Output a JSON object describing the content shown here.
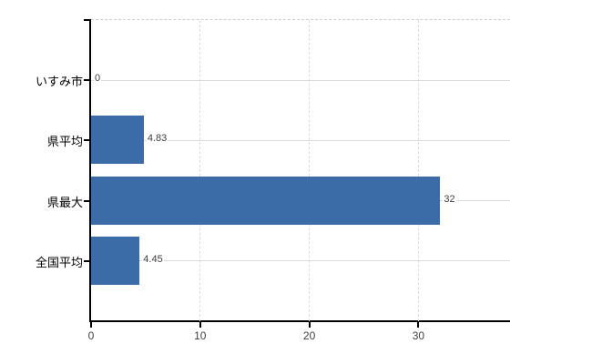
{
  "chart_data": {
    "type": "bar",
    "orientation": "horizontal",
    "categories": [
      "いすみ市",
      "県平均",
      "県最大",
      "全国平均"
    ],
    "values": [
      0,
      4.83,
      32,
      4.45
    ],
    "value_labels": [
      "0",
      "4.83",
      "32",
      "4.45"
    ],
    "x_ticks": [
      0,
      10,
      20,
      30
    ],
    "xlim": [
      0,
      38.4
    ],
    "grid": true,
    "legend": false,
    "bar_color": "#3c6ca8",
    "grid_color": "#d7ddd7",
    "top_border_color": "#c9cfc9",
    "axis_color": "#000000",
    "category_text_color": "#000000",
    "value_text_color": "#404040",
    "tick_text_color": "#404040",
    "background_color": "#ffffff"
  }
}
